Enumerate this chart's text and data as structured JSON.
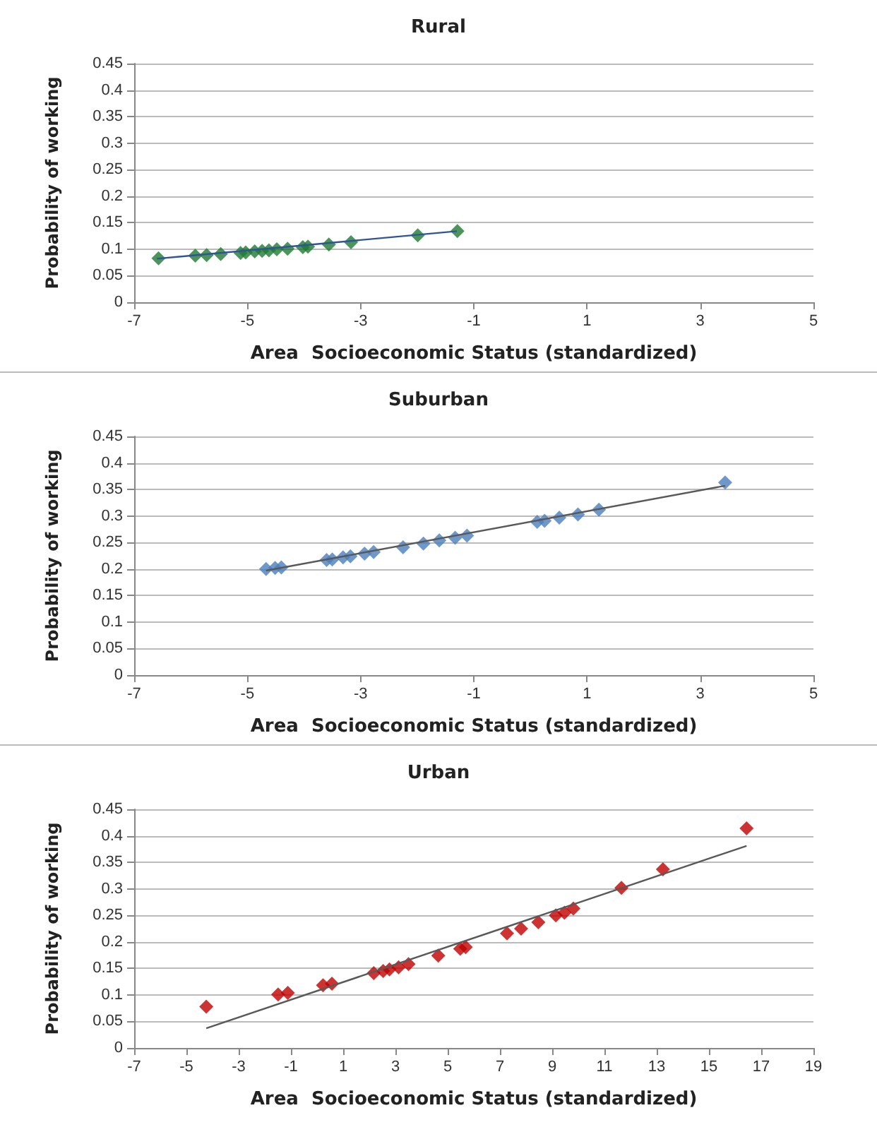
{
  "chart_data": [
    {
      "type": "scatter",
      "title": "Rural",
      "xlabel": "Area  Socioeconomic Status (standardized)",
      "ylabel": "Probability of working",
      "xlim": [
        -7,
        5
      ],
      "xticks": [
        -7,
        -5,
        -3,
        -1,
        1,
        3,
        5
      ],
      "ylim": [
        0,
        0.45
      ],
      "yticks": [
        0,
        0.05,
        0.1,
        0.15,
        0.2,
        0.25,
        0.3,
        0.35,
        0.4,
        0.45
      ],
      "grid": "y",
      "series": [
        {
          "color": "#1e7b32",
          "marker": "diamond",
          "x": [
            -6.57,
            -5.92,
            -5.72,
            -5.47,
            -5.12,
            -5.03,
            -4.87,
            -4.74,
            -4.62,
            -4.48,
            -4.29,
            -4.02,
            -3.93,
            -3.56,
            -3.17,
            -1.99,
            -1.29
          ],
          "values": [
            0.083,
            0.088,
            0.089,
            0.091,
            0.093,
            0.094,
            0.096,
            0.097,
            0.098,
            0.1,
            0.101,
            0.104,
            0.105,
            0.109,
            0.113,
            0.126,
            0.134
          ]
        },
        {
          "type": "line",
          "color": "#2f5597",
          "marker": "none",
          "x": [
            -6.6,
            -1.3
          ],
          "values": [
            0.082,
            0.134
          ]
        }
      ]
    },
    {
      "type": "scatter",
      "title": "Suburban",
      "xlabel": "Area  Socioeconomic Status (standardized)",
      "ylabel": "Probability of working",
      "xlim": [
        -7,
        5
      ],
      "xticks": [
        -7,
        -5,
        -3,
        -1,
        1,
        3,
        5
      ],
      "ylim": [
        0,
        0.45
      ],
      "yticks": [
        0,
        0.05,
        0.1,
        0.15,
        0.2,
        0.25,
        0.3,
        0.35,
        0.4,
        0.45
      ],
      "grid": "y",
      "series": [
        {
          "color": "#4a7ebb",
          "marker": "diamond",
          "x": [
            -4.67,
            -4.51,
            -4.4,
            -3.6,
            -3.5,
            -3.31,
            -3.18,
            -2.93,
            -2.77,
            -2.25,
            -1.89,
            -1.61,
            -1.33,
            -1.12,
            0.12,
            0.25,
            0.51,
            0.84,
            1.21,
            3.44
          ],
          "values": [
            0.2,
            0.202,
            0.203,
            0.217,
            0.218,
            0.222,
            0.224,
            0.229,
            0.232,
            0.241,
            0.248,
            0.254,
            0.259,
            0.263,
            0.289,
            0.291,
            0.297,
            0.303,
            0.312,
            0.363
          ]
        },
        {
          "type": "line",
          "color": "#595959",
          "marker": "none",
          "x": [
            -4.67,
            3.44
          ],
          "values": [
            0.197,
            0.357
          ]
        }
      ]
    },
    {
      "type": "scatter",
      "title": "Urban",
      "xlabel": "Area  Socioeconomic Status (standardized)",
      "ylabel": "Probability of working",
      "xlim": [
        -7,
        19
      ],
      "xticks": [
        -7,
        -5,
        -3,
        -1,
        1,
        3,
        5,
        7,
        9,
        11,
        13,
        15,
        17,
        19
      ],
      "ylim": [
        0,
        0.45
      ],
      "yticks": [
        0,
        0.05,
        0.1,
        0.15,
        0.2,
        0.25,
        0.3,
        0.35,
        0.4,
        0.45
      ],
      "grid": "y",
      "series": [
        {
          "color": "#c00000",
          "marker": "diamond",
          "x": [
            -4.24,
            -1.49,
            -1.12,
            0.23,
            0.57,
            2.17,
            2.53,
            2.77,
            3.12,
            3.5,
            4.64,
            5.48,
            5.69,
            7.27,
            7.81,
            8.47,
            9.14,
            9.47,
            9.81,
            11.65,
            13.24,
            16.44
          ],
          "values": [
            0.078,
            0.101,
            0.104,
            0.118,
            0.121,
            0.141,
            0.145,
            0.148,
            0.152,
            0.158,
            0.174,
            0.187,
            0.19,
            0.216,
            0.225,
            0.237,
            0.25,
            0.255,
            0.263,
            0.302,
            0.337,
            0.414
          ]
        },
        {
          "type": "line",
          "color": "#595959",
          "marker": "none",
          "x": [
            -4.24,
            16.44
          ],
          "values": [
            0.037,
            0.381
          ]
        }
      ]
    }
  ]
}
